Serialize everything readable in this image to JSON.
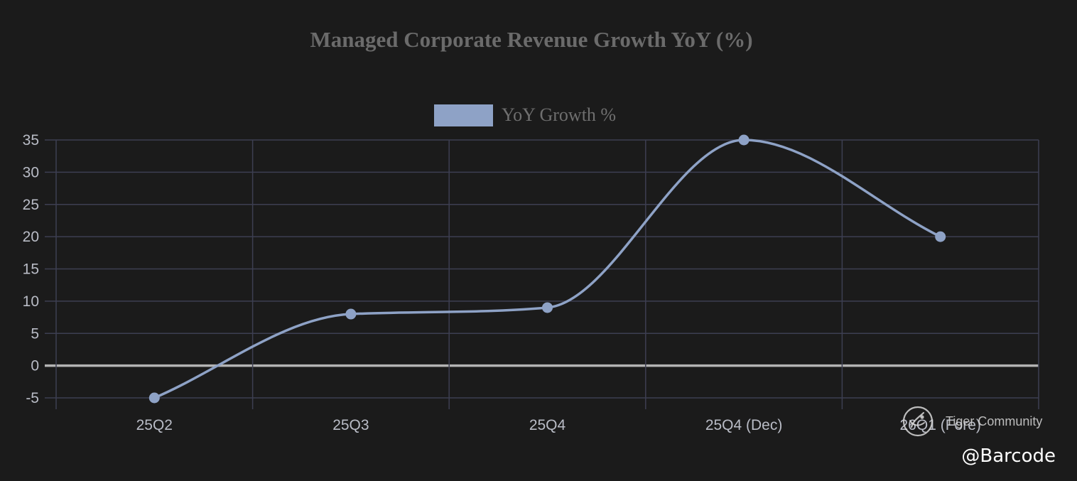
{
  "chart_data": {
    "type": "line",
    "title": "Managed Corporate Revenue Growth YoY (%)",
    "categories": [
      "25Q2",
      "25Q3",
      "25Q4",
      "25Q4 (Dec)",
      "26Q1 (Fore)"
    ],
    "series": [
      {
        "name": "YoY Growth %",
        "values": [
          -5,
          8,
          9,
          35,
          20
        ],
        "color": "#8ea2c6"
      }
    ],
    "ylim": [
      -5,
      35
    ],
    "y_ticks": [
      -5,
      0,
      5,
      10,
      15,
      20,
      25,
      30,
      35
    ],
    "y_step": 5,
    "xlabel": "",
    "ylabel": "",
    "grid": true,
    "legend_position": "top-center",
    "colors": {
      "background": "#1b1b1b",
      "grid": "#3d3f52",
      "zero_line": "#b4b4b4",
      "title": "#6b6b6b",
      "tick": "#b9bcc6"
    }
  },
  "watermark": {
    "community": "Tiger Community",
    "handle": "@Barcode",
    "icon": "tiger-logo-icon"
  }
}
